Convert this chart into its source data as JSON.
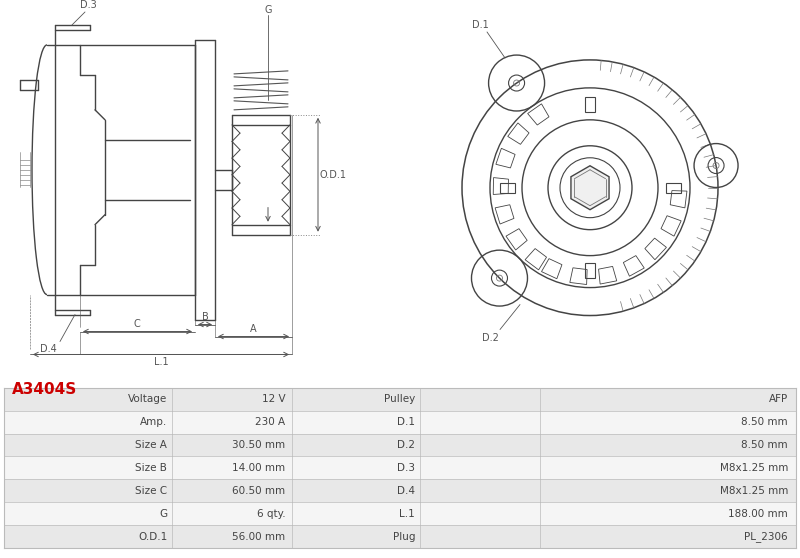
{
  "title": "A3404S",
  "title_color": "#cc0000",
  "bg_color": "#ffffff",
  "table_rows": [
    [
      "Voltage",
      "12 V",
      "Pulley",
      "AFP"
    ],
    [
      "Amp.",
      "230 A",
      "D.1",
      "8.50 mm"
    ],
    [
      "Size A",
      "30.50 mm",
      "D.2",
      "8.50 mm"
    ],
    [
      "Size B",
      "14.00 mm",
      "D.3",
      "M8x1.25 mm"
    ],
    [
      "Size C",
      "60.50 mm",
      "D.4",
      "M8x1.25 mm"
    ],
    [
      "G",
      "6 qty.",
      "L.1",
      "188.00 mm"
    ],
    [
      "O.D.1",
      "56.00 mm",
      "Plug",
      "PL_2306"
    ]
  ],
  "table_row_bg1": "#e8e8e8",
  "table_row_bg2": "#f5f5f5",
  "table_border_color": "#cccccc",
  "table_text_color": "#444444",
  "drawing_line_color": "#444444",
  "dim_color": "#555555"
}
